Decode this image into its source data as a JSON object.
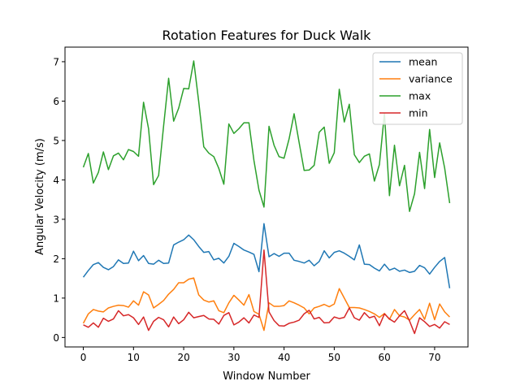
{
  "chart_data": {
    "type": "line",
    "title": "Rotation Features for Duck Walk",
    "xlabel": "Window Number",
    "ylabel": "Angular Velocity (m/s)",
    "xlim": [
      -3.65,
      76.65
    ],
    "ylim": [
      -0.24,
      7.37
    ],
    "xticks": [
      0,
      10,
      20,
      30,
      40,
      50,
      60,
      70
    ],
    "yticks": [
      0,
      1,
      2,
      3,
      4,
      5,
      6,
      7
    ],
    "grid": false,
    "legend_position": "top-right",
    "x_start": 0,
    "series": [
      {
        "name": "mean",
        "color": "#1f77b4",
        "values": [
          1.53,
          1.7,
          1.85,
          1.9,
          1.78,
          1.72,
          1.8,
          1.97,
          1.88,
          1.89,
          2.19,
          1.95,
          2.08,
          1.88,
          1.86,
          1.96,
          1.88,
          1.89,
          2.35,
          2.42,
          2.48,
          2.6,
          2.48,
          2.31,
          2.16,
          2.18,
          1.97,
          2.01,
          1.89,
          2.06,
          2.39,
          2.31,
          2.22,
          2.17,
          2.11,
          1.67,
          2.89,
          2.05,
          2.13,
          2.06,
          2.14,
          2.14,
          1.96,
          1.93,
          1.89,
          1.96,
          1.82,
          1.93,
          2.2,
          2.02,
          2.16,
          2.2,
          2.14,
          2.06,
          1.97,
          2.35,
          1.86,
          1.85,
          1.76,
          1.69,
          1.86,
          1.71,
          1.76,
          1.68,
          1.71,
          1.65,
          1.68,
          1.83,
          1.77,
          1.61,
          1.78,
          1.93,
          2.03,
          1.25
        ]
      },
      {
        "name": "variance",
        "color": "#ff7f0e",
        "values": [
          0.36,
          0.6,
          0.71,
          0.67,
          0.65,
          0.75,
          0.79,
          0.82,
          0.81,
          0.77,
          0.93,
          0.82,
          1.16,
          1.08,
          0.75,
          0.84,
          0.94,
          1.1,
          1.22,
          1.39,
          1.39,
          1.48,
          1.51,
          1.08,
          0.95,
          0.9,
          0.93,
          0.68,
          0.63,
          0.88,
          1.07,
          0.95,
          0.82,
          1.09,
          0.66,
          0.59,
          0.18,
          0.88,
          0.79,
          0.79,
          0.81,
          0.93,
          0.88,
          0.82,
          0.75,
          0.6,
          0.75,
          0.79,
          0.84,
          0.78,
          0.85,
          1.24,
          1.0,
          0.76,
          0.76,
          0.75,
          0.71,
          0.66,
          0.6,
          0.51,
          0.61,
          0.46,
          0.71,
          0.55,
          0.52,
          0.44,
          0.58,
          0.71,
          0.46,
          0.87,
          0.45,
          0.85,
          0.65,
          0.52
        ]
      },
      {
        "name": "max",
        "color": "#2ca02c",
        "values": [
          4.32,
          4.67,
          3.92,
          4.19,
          4.71,
          4.26,
          4.61,
          4.68,
          4.51,
          4.77,
          4.72,
          4.6,
          5.97,
          5.3,
          3.88,
          4.11,
          5.37,
          6.58,
          5.49,
          5.82,
          6.32,
          6.31,
          7.02,
          5.98,
          4.84,
          4.68,
          4.59,
          4.29,
          3.89,
          5.42,
          5.18,
          5.3,
          5.45,
          5.45,
          4.49,
          3.74,
          3.31,
          5.36,
          4.88,
          4.59,
          4.55,
          5.04,
          5.68,
          4.95,
          4.24,
          4.25,
          4.37,
          5.21,
          5.34,
          4.42,
          4.69,
          6.3,
          5.47,
          5.92,
          4.64,
          4.44,
          4.6,
          4.66,
          3.97,
          4.39,
          5.69,
          3.6,
          4.88,
          3.85,
          4.37,
          3.2,
          3.65,
          4.7,
          3.78,
          5.28,
          4.06,
          4.94,
          4.3,
          3.41
        ]
      },
      {
        "name": "min",
        "color": "#d62728",
        "values": [
          0.32,
          0.26,
          0.37,
          0.26,
          0.49,
          0.41,
          0.47,
          0.68,
          0.55,
          0.58,
          0.5,
          0.33,
          0.52,
          0.18,
          0.41,
          0.51,
          0.45,
          0.27,
          0.52,
          0.35,
          0.45,
          0.64,
          0.5,
          0.53,
          0.56,
          0.47,
          0.46,
          0.34,
          0.56,
          0.63,
          0.32,
          0.39,
          0.5,
          0.37,
          0.57,
          0.51,
          2.22,
          0.65,
          0.43,
          0.3,
          0.29,
          0.36,
          0.39,
          0.44,
          0.6,
          0.69,
          0.47,
          0.51,
          0.37,
          0.38,
          0.52,
          0.48,
          0.51,
          0.75,
          0.5,
          0.44,
          0.63,
          0.5,
          0.54,
          0.3,
          0.6,
          0.47,
          0.39,
          0.55,
          0.68,
          0.42,
          0.1,
          0.5,
          0.4,
          0.28,
          0.33,
          0.24,
          0.4,
          0.33
        ]
      }
    ]
  }
}
